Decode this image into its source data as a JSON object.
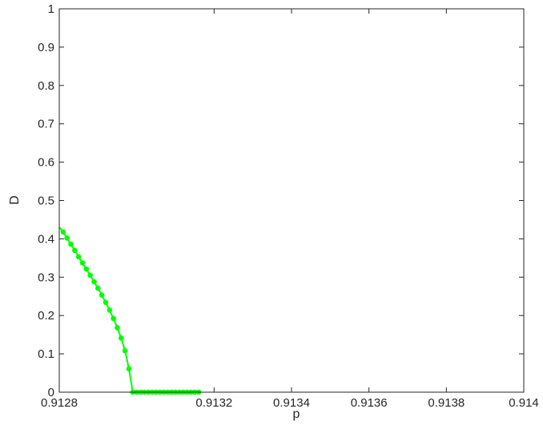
{
  "chart_data": {
    "type": "line",
    "xlabel": "p",
    "ylabel": "D",
    "xlim": [
      0.9128,
      0.914
    ],
    "ylim": [
      0,
      1
    ],
    "x_ticks": [
      0.9128,
      0.9132,
      0.9134,
      0.9136,
      0.9138,
      0.914
    ],
    "x_tick_labels": [
      "0.9128",
      "0.9132",
      "0.9134",
      "0.9136",
      "0.9138",
      "0.914"
    ],
    "y_ticks": [
      0,
      0.1,
      0.2,
      0.3,
      0.4,
      0.5,
      0.6,
      0.7,
      0.8,
      0.9,
      1
    ],
    "y_tick_labels": [
      "0",
      "0.1",
      "0.2",
      "0.3",
      "0.4",
      "0.5",
      "0.6",
      "0.7",
      "0.8",
      "0.9",
      "1"
    ],
    "grid": false,
    "series": [
      {
        "color": "#00ff00",
        "x": [
          0.9128,
          0.91281,
          0.91282,
          0.91283,
          0.91284,
          0.91285,
          0.91286,
          0.91287,
          0.91288,
          0.91289,
          0.9129,
          0.91291,
          0.91292,
          0.91293,
          0.91294,
          0.91295,
          0.91296,
          0.91297,
          0.91298,
          0.91299,
          0.913,
          0.91301,
          0.91302,
          0.91303,
          0.91304,
          0.91305,
          0.91306,
          0.91307,
          0.91308,
          0.91309,
          0.9131,
          0.91311,
          0.91312,
          0.91313,
          0.91314,
          0.91315,
          0.91316
        ],
        "y": [
          0.43,
          0.418,
          0.402,
          0.386,
          0.37,
          0.353,
          0.337,
          0.321,
          0.305,
          0.288,
          0.271,
          0.253,
          0.234,
          0.214,
          0.192,
          0.168,
          0.141,
          0.108,
          0.061,
          0,
          0,
          0,
          0,
          0,
          0,
          0,
          0,
          0,
          0,
          0,
          0,
          0,
          0,
          0,
          0,
          0,
          0
        ]
      }
    ]
  }
}
